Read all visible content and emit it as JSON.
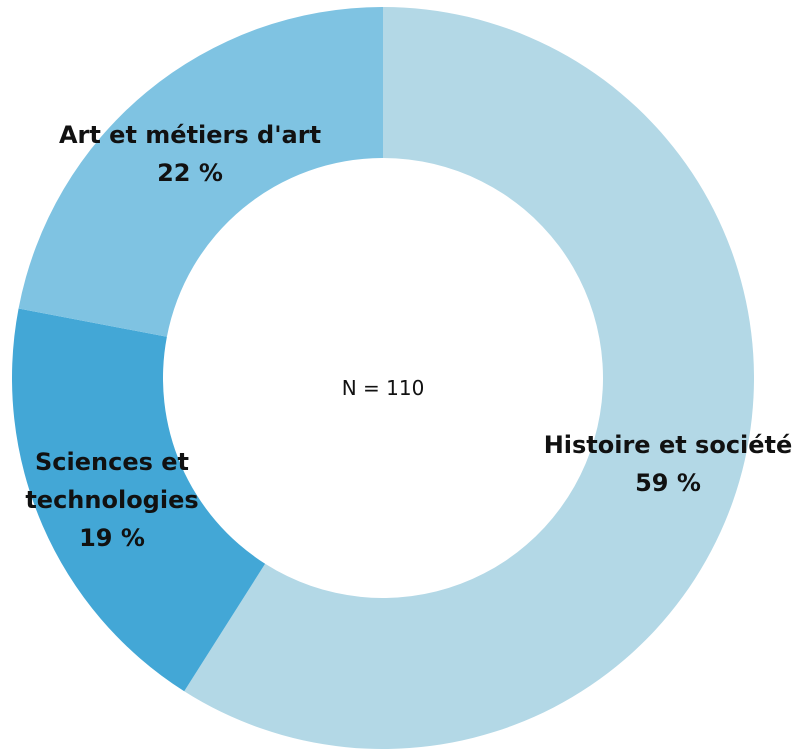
{
  "chart_data": {
    "type": "donut",
    "categories": [
      "Histoire et société",
      "Sciences et technologies",
      "Art et métiers d'art"
    ],
    "values": [
      59,
      19,
      22
    ],
    "value_labels": [
      "59 %",
      "19 %",
      "22 %"
    ],
    "colors": [
      "#b3d8e6",
      "#43a7d6",
      "#7fc3e2"
    ],
    "annotation": "N = 110"
  }
}
